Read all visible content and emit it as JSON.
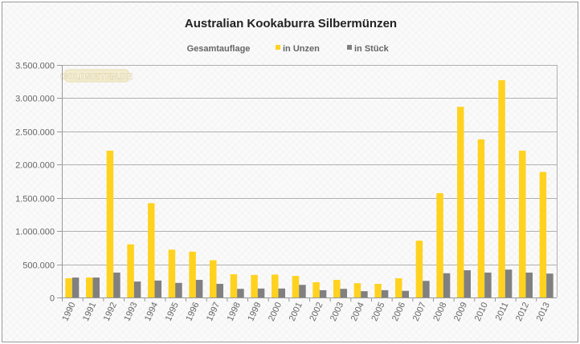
{
  "chart_data": {
    "type": "bar",
    "title": "Australian Kookaburra Silbermünzen",
    "legend_title": "Gesamtauflage",
    "legend_position": "top",
    "watermark": "GOLDSEITEN.DE",
    "categories": [
      "1990",
      "1991",
      "1992",
      "1993",
      "1994",
      "1995",
      "1996",
      "1997",
      "1998",
      "1999",
      "2000",
      "2001",
      "2002",
      "2003",
      "2004",
      "2005",
      "2006",
      "2007",
      "2008",
      "2009",
      "2010",
      "2011",
      "2012",
      "2013"
    ],
    "series": [
      {
        "name": "in Unzen",
        "color": "#ffd21f",
        "values": [
          290000,
          300000,
          2210000,
          800000,
          1420000,
          720000,
          690000,
          560000,
          350000,
          340000,
          345000,
          325000,
          230000,
          265000,
          215000,
          205000,
          290000,
          855000,
          1570000,
          2870000,
          2380000,
          3270000,
          2210000,
          1890000
        ]
      },
      {
        "name": "in Stück",
        "color": "#808080",
        "values": [
          300000,
          300000,
          375000,
          240000,
          255000,
          220000,
          265000,
          205000,
          130000,
          135000,
          135000,
          190000,
          110000,
          130000,
          95000,
          110000,
          100000,
          250000,
          365000,
          410000,
          375000,
          420000,
          375000,
          360000
        ]
      }
    ],
    "xlabel": "",
    "ylabel": "",
    "ylim": [
      0,
      3500000
    ],
    "yticks": [
      "0",
      "500.000",
      "1.000.000",
      "1.500.000",
      "2.000.000",
      "2.500.000",
      "3.000.000",
      "3.500.000"
    ],
    "grid": true
  }
}
